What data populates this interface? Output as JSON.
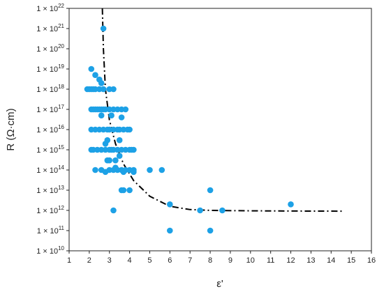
{
  "chart_data": {
    "type": "scatter",
    "xlabel": "ε'",
    "ylabel": "R (Ω·cm)",
    "xlim": [
      1,
      16
    ],
    "ylim": [
      10000000000.0,
      1e+22
    ],
    "yscale": "log",
    "x_ticks": [
      1,
      2,
      3,
      4,
      5,
      6,
      7,
      8,
      9,
      10,
      11,
      12,
      13,
      14,
      15,
      16
    ],
    "y_ticks": [
      {
        "exp": 10,
        "label": "1 × 10"
      },
      {
        "exp": 11,
        "label": "1 × 10"
      },
      {
        "exp": 12,
        "label": "1 × 10"
      },
      {
        "exp": 13,
        "label": "1 × 10"
      },
      {
        "exp": 14,
        "label": "1 × 10"
      },
      {
        "exp": 15,
        "label": "1 × 10"
      },
      {
        "exp": 16,
        "label": "1 × 10"
      },
      {
        "exp": 17,
        "label": "1 × 10"
      },
      {
        "exp": 18,
        "label": "1 × 10"
      },
      {
        "exp": 19,
        "label": "1 × 10"
      },
      {
        "exp": 20,
        "label": "1 × 10"
      },
      {
        "exp": 21,
        "label": "1 × 10"
      },
      {
        "exp": 22,
        "label": "1 × 10"
      }
    ],
    "grid": false,
    "marker_color": "#1da1e6",
    "fit_color": "#000000",
    "points": [
      {
        "x": 2.7,
        "y": 1e+21
      },
      {
        "x": 2.1,
        "y": 1e+19
      },
      {
        "x": 2.3,
        "y": 5e+18
      },
      {
        "x": 2.5,
        "y": 3e+18
      },
      {
        "x": 2.6,
        "y": 2e+18
      },
      {
        "x": 1.9,
        "y": 1e+18
      },
      {
        "x": 2.0,
        "y": 1e+18
      },
      {
        "x": 2.1,
        "y": 1e+18
      },
      {
        "x": 2.2,
        "y": 1e+18
      },
      {
        "x": 2.3,
        "y": 1e+18
      },
      {
        "x": 2.5,
        "y": 1e+18
      },
      {
        "x": 2.7,
        "y": 1e+18
      },
      {
        "x": 3.0,
        "y": 1e+18
      },
      {
        "x": 3.2,
        "y": 1e+18
      },
      {
        "x": 2.1,
        "y": 1e+17
      },
      {
        "x": 2.2,
        "y": 1e+17
      },
      {
        "x": 2.3,
        "y": 1e+17
      },
      {
        "x": 2.4,
        "y": 1e+17
      },
      {
        "x": 2.5,
        "y": 1e+17
      },
      {
        "x": 2.6,
        "y": 1e+17
      },
      {
        "x": 2.7,
        "y": 1e+17
      },
      {
        "x": 2.8,
        "y": 1e+17
      },
      {
        "x": 3.0,
        "y": 1e+17
      },
      {
        "x": 3.2,
        "y": 1e+17
      },
      {
        "x": 3.4,
        "y": 1e+17
      },
      {
        "x": 3.6,
        "y": 1e+17
      },
      {
        "x": 3.8,
        "y": 1e+17
      },
      {
        "x": 2.6,
        "y": 5e+16
      },
      {
        "x": 3.1,
        "y": 5e+16
      },
      {
        "x": 3.6,
        "y": 4e+16
      },
      {
        "x": 2.1,
        "y": 1e+16
      },
      {
        "x": 2.3,
        "y": 1e+16
      },
      {
        "x": 2.5,
        "y": 1e+16
      },
      {
        "x": 2.7,
        "y": 1e+16
      },
      {
        "x": 2.9,
        "y": 1e+16
      },
      {
        "x": 3.0,
        "y": 1e+16
      },
      {
        "x": 3.2,
        "y": 1e+16
      },
      {
        "x": 3.4,
        "y": 1e+16
      },
      {
        "x": 3.5,
        "y": 1e+16
      },
      {
        "x": 3.7,
        "y": 1e+16
      },
      {
        "x": 3.9,
        "y": 1e+16
      },
      {
        "x": 4.0,
        "y": 1e+16
      },
      {
        "x": 2.8,
        "y": 2000000000000000.0
      },
      {
        "x": 2.9,
        "y": 3000000000000000.0
      },
      {
        "x": 3.5,
        "y": 3000000000000000.0
      },
      {
        "x": 2.1,
        "y": 1000000000000000.0
      },
      {
        "x": 2.6,
        "y": 1000000000000000.0
      },
      {
        "x": 2.8,
        "y": 1000000000000000.0
      },
      {
        "x": 3.0,
        "y": 1000000000000000.0
      },
      {
        "x": 3.2,
        "y": 1000000000000000.0
      },
      {
        "x": 3.4,
        "y": 1000000000000000.0
      },
      {
        "x": 3.6,
        "y": 1000000000000000.0
      },
      {
        "x": 3.8,
        "y": 1000000000000000.0
      },
      {
        "x": 4.0,
        "y": 1000000000000000.0
      },
      {
        "x": 3.3,
        "y": 300000000000000.0
      },
      {
        "x": 3.5,
        "y": 500000000000000.0
      },
      {
        "x": 2.6,
        "y": 100000000000000.0
      },
      {
        "x": 3.0,
        "y": 100000000000000.0
      },
      {
        "x": 3.2,
        "y": 100000000000000.0
      },
      {
        "x": 3.4,
        "y": 100000000000000.0
      },
      {
        "x": 3.6,
        "y": 100000000000000.0
      },
      {
        "x": 3.8,
        "y": 100000000000000.0
      },
      {
        "x": 4.0,
        "y": 100000000000000.0
      },
      {
        "x": 4.2,
        "y": 100000000000000.0
      },
      {
        "x": 2.2,
        "y": 1000000000000000.0
      },
      {
        "x": 2.4,
        "y": 1000000000000000.0
      },
      {
        "x": 3.1,
        "y": 1000000000000000.0
      },
      {
        "x": 4.1,
        "y": 1000000000000000.0
      },
      {
        "x": 4.2,
        "y": 1000000000000000.0
      },
      {
        "x": 2.9,
        "y": 300000000000000.0
      },
      {
        "x": 3.0,
        "y": 300000000000000.0
      },
      {
        "x": 2.3,
        "y": 100000000000000.0
      },
      {
        "x": 2.8,
        "y": 80000000000000.0
      },
      {
        "x": 3.3,
        "y": 130000000000000.0
      },
      {
        "x": 3.7,
        "y": 80000000000000.0
      },
      {
        "x": 4.2,
        "y": 80000000000000.0
      },
      {
        "x": 5.0,
        "y": 100000000000000.0
      },
      {
        "x": 5.6,
        "y": 100000000000000.0
      },
      {
        "x": 3.6,
        "y": 10000000000000.0
      },
      {
        "x": 3.7,
        "y": 10000000000000.0
      },
      {
        "x": 4.0,
        "y": 10000000000000.0
      },
      {
        "x": 3.2,
        "y": 1000000000000.0
      },
      {
        "x": 6.0,
        "y": 2000000000000.0
      },
      {
        "x": 8.0,
        "y": 10000000000000.0
      },
      {
        "x": 7.5,
        "y": 1000000000000.0
      },
      {
        "x": 8.6,
        "y": 1000000000000.0
      },
      {
        "x": 12.0,
        "y": 2000000000000.0
      },
      {
        "x": 6.0,
        "y": 100000000000.0
      },
      {
        "x": 8.0,
        "y": 100000000000.0
      }
    ],
    "fit_line": [
      {
        "x": 2.65,
        "y": 2e+22
      },
      {
        "x": 2.7,
        "y": 1e+20
      },
      {
        "x": 2.8,
        "y": 1e+18
      },
      {
        "x": 3.0,
        "y": 3e+16
      },
      {
        "x": 3.3,
        "y": 2000000000000000.0
      },
      {
        "x": 3.7,
        "y": 200000000000000.0
      },
      {
        "x": 4.2,
        "y": 30000000000000.0
      },
      {
        "x": 5.0,
        "y": 5000000000000.0
      },
      {
        "x": 6.0,
        "y": 1600000000000.0
      },
      {
        "x": 7.0,
        "y": 1100000000000.0
      },
      {
        "x": 8.0,
        "y": 1000000000000.0
      },
      {
        "x": 10.0,
        "y": 950000000000.0
      },
      {
        "x": 12.0,
        "y": 930000000000.0
      },
      {
        "x": 14.6,
        "y": 920000000000.0
      }
    ]
  }
}
